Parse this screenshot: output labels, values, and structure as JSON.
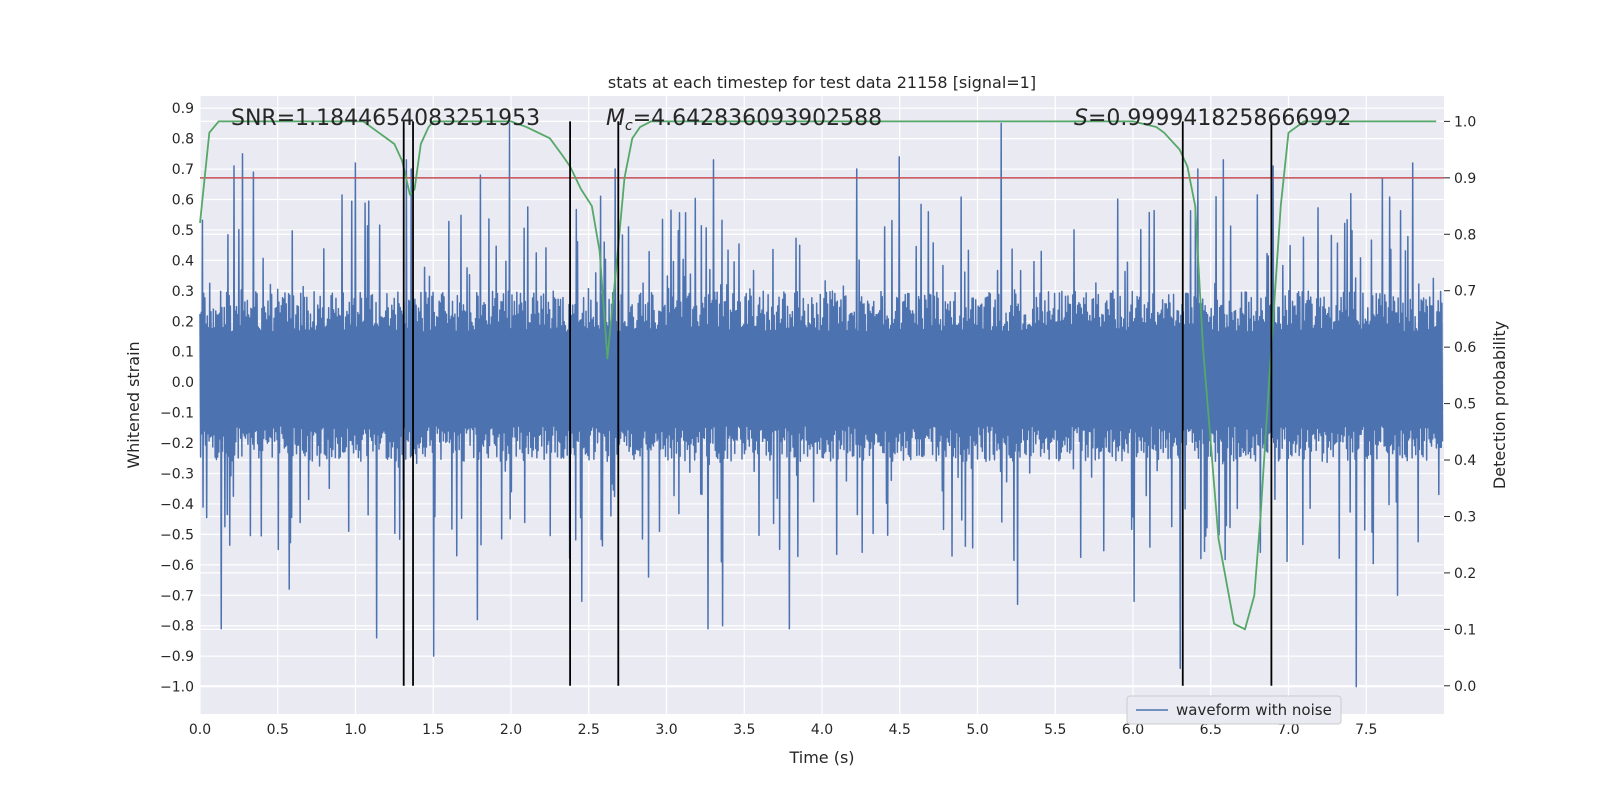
{
  "chart_data": {
    "type": "line",
    "title": "stats at each timestep for test data 21158 [signal=1]",
    "xlabel": "Time (s)",
    "ylabel": "Whitened strain",
    "y2label": "Detection probability",
    "xlim": [
      0.0,
      8.0
    ],
    "ylim": [
      -1.09,
      0.94
    ],
    "y2lim": [
      -0.05,
      1.045
    ],
    "x_ticks": [
      "0.0",
      "0.5",
      "1.0",
      "1.5",
      "2.0",
      "2.5",
      "3.0",
      "3.5",
      "4.0",
      "4.5",
      "5.0",
      "5.5",
      "6.0",
      "6.5",
      "7.0",
      "7.5"
    ],
    "y_ticks": [
      "0.9",
      "0.8",
      "0.7",
      "0.6",
      "0.5",
      "0.4",
      "0.3",
      "0.2",
      "0.1",
      "0.0",
      "−0.1",
      "−0.2",
      "−0.3",
      "−0.4",
      "−0.5",
      "−0.6",
      "−0.7",
      "−0.8",
      "−0.9",
      "−1.0"
    ],
    "y2_ticks": [
      "1.0",
      "0.9",
      "0.8",
      "0.7",
      "0.6",
      "0.5",
      "0.4",
      "0.3",
      "0.2",
      "0.1",
      "0.0"
    ],
    "grid": true,
    "legend": {
      "position": "lower-right",
      "entries": [
        "waveform with noise"
      ]
    },
    "annotations": {
      "snr": "SNR=1.1844654083251953",
      "mc_symbol": "M",
      "mc_sub": "c",
      "mc_value": "=4.642836093902588",
      "s_symbol": "S",
      "s_value": "=0.9999418258666992"
    },
    "threshold": {
      "value": 0.9,
      "color": "#c44e52"
    },
    "vertical_markers": [
      1.31,
      1.37,
      2.38,
      2.69,
      6.32,
      6.89
    ],
    "series": [
      {
        "name": "waveform with noise",
        "color": "#4c72b0",
        "axis": "left",
        "t_end": 7.99,
        "n_samples": 2048,
        "seed": 21158,
        "typical_max": 0.3,
        "typical_min": -0.26,
        "peaks": [
          [
            0.22,
            0.71
          ],
          [
            0.27,
            0.75
          ],
          [
            0.34,
            0.69
          ],
          [
            1.0,
            0.72
          ],
          [
            1.33,
            0.73
          ],
          [
            1.36,
            0.7
          ],
          [
            1.8,
            0.68
          ],
          [
            1.99,
            0.85
          ],
          [
            2.67,
            0.7
          ],
          [
            3.3,
            0.73
          ],
          [
            4.22,
            0.7
          ],
          [
            4.5,
            0.74
          ],
          [
            5.15,
            0.85
          ],
          [
            6.42,
            0.7
          ],
          [
            6.58,
            0.73
          ],
          [
            6.9,
            0.71
          ],
          [
            7.6,
            0.67
          ],
          [
            7.8,
            0.72
          ]
        ],
        "troughs": [
          [
            0.13,
            -0.81
          ],
          [
            0.57,
            -0.68
          ],
          [
            1.13,
            -0.84
          ],
          [
            1.5,
            -0.9
          ],
          [
            1.78,
            -0.78
          ],
          [
            2.45,
            -0.72
          ],
          [
            2.88,
            -0.64
          ],
          [
            3.26,
            -0.81
          ],
          [
            3.36,
            -0.8
          ],
          [
            3.79,
            -0.81
          ],
          [
            5.25,
            -0.73
          ],
          [
            6.0,
            -0.72
          ],
          [
            6.3,
            -0.94
          ],
          [
            7.43,
            -1.0
          ],
          [
            7.7,
            -0.7
          ]
        ]
      },
      {
        "name": "detection probability",
        "color": "#55a868",
        "axis": "right",
        "x": [
          0.0,
          0.06,
          0.12,
          0.25,
          0.5,
          0.8,
          1.05,
          1.15,
          1.25,
          1.3,
          1.35,
          1.38,
          1.42,
          1.47,
          1.5,
          1.55,
          1.8,
          2.0,
          2.1,
          2.25,
          2.33,
          2.38,
          2.45,
          2.52,
          2.57,
          2.62,
          2.68,
          2.73,
          2.78,
          2.83,
          2.9,
          3.0,
          5.0,
          6.0,
          6.15,
          6.2,
          6.3,
          6.35,
          6.4,
          6.45,
          6.55,
          6.65,
          6.72,
          6.78,
          6.82,
          6.88,
          6.95,
          7.0,
          7.1,
          7.95
        ],
        "y": [
          0.82,
          0.98,
          1.0,
          1.0,
          1.0,
          1.0,
          1.0,
          0.98,
          0.96,
          0.93,
          0.87,
          0.88,
          0.96,
          0.99,
          1.0,
          1.0,
          1.0,
          1.0,
          0.99,
          0.97,
          0.94,
          0.92,
          0.88,
          0.85,
          0.77,
          0.58,
          0.75,
          0.9,
          0.97,
          0.99,
          1.0,
          1.0,
          1.0,
          1.0,
          0.99,
          0.98,
          0.95,
          0.92,
          0.85,
          0.6,
          0.26,
          0.11,
          0.1,
          0.16,
          0.3,
          0.56,
          0.85,
          0.98,
          1.0,
          1.0
        ]
      }
    ]
  }
}
